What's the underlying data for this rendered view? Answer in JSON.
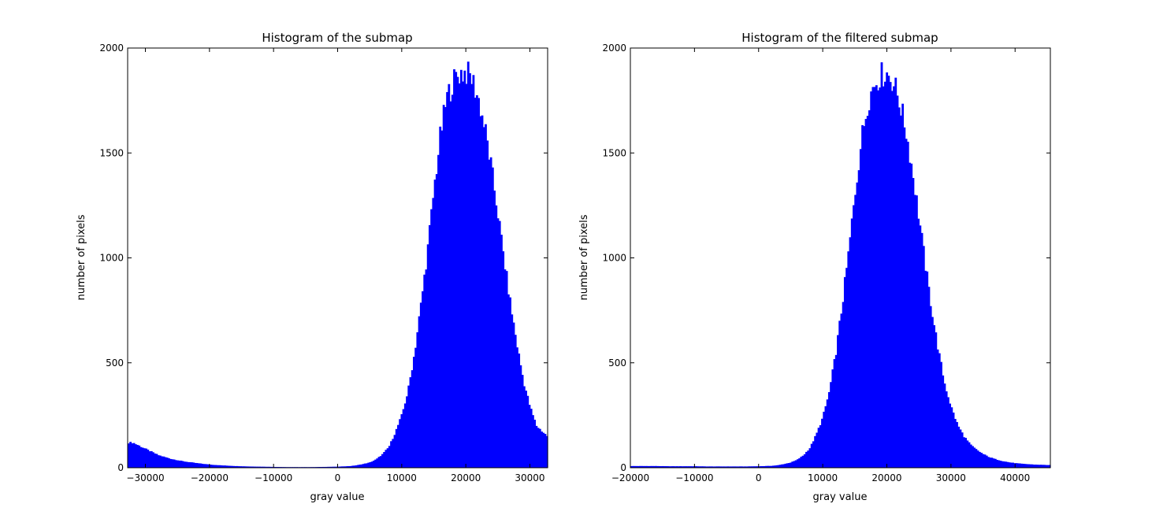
{
  "chart_data": [
    {
      "type": "bar",
      "title": "Histogram of the submap",
      "xlabel": "gray value",
      "ylabel": "number of pixels",
      "xlim": [
        -32768,
        32768
      ],
      "ylim": [
        0,
        2000
      ],
      "xticks": [
        -30000,
        -20000,
        -10000,
        0,
        10000,
        20000,
        30000
      ],
      "xtick_labels": [
        "−30000",
        "−20000",
        "−10000",
        "0",
        "10000",
        "20000",
        "30000"
      ],
      "yticks": [
        0,
        500,
        1000,
        1500,
        2000
      ],
      "ytick_labels": [
        "0",
        "500",
        "1000",
        "1500",
        "2000"
      ],
      "color": "#0000ff",
      "grid": false,
      "x": [
        -32000,
        -30000,
        -28000,
        -26000,
        -24000,
        -22000,
        -20000,
        -18000,
        -16000,
        -14000,
        -12000,
        -10000,
        -8000,
        -6000,
        -4000,
        -2000,
        0,
        2000,
        3000,
        4000,
        5000,
        6000,
        7000,
        8000,
        9000,
        10000,
        11000,
        12000,
        13000,
        14000,
        15000,
        16000,
        17000,
        18000,
        19000,
        20000,
        21000,
        22000,
        23000,
        24000,
        25000,
        26000,
        27000,
        28000,
        29000,
        30000,
        31000,
        32000,
        32700
      ],
      "values": [
        120,
        90,
        60,
        42,
        30,
        22,
        15,
        11,
        8,
        6,
        5,
        4,
        3,
        3,
        3,
        4,
        5,
        8,
        12,
        18,
        25,
        40,
        65,
        100,
        170,
        250,
        370,
        550,
        780,
        1030,
        1320,
        1580,
        1760,
        1840,
        1880,
        1885,
        1850,
        1750,
        1610,
        1420,
        1210,
        980,
        770,
        580,
        410,
        290,
        200,
        170,
        150
      ]
    },
    {
      "type": "bar",
      "title": "Histogram of the filtered submap",
      "xlabel": "gray value",
      "ylabel": "number of pixels",
      "xlim": [
        -20000,
        45500
      ],
      "ylim": [
        0,
        2000
      ],
      "xticks": [
        -20000,
        -10000,
        0,
        10000,
        20000,
        30000,
        40000
      ],
      "xtick_labels": [
        "−20000",
        "−10000",
        "0",
        "10000",
        "20000",
        "30000",
        "40000"
      ],
      "yticks": [
        0,
        500,
        1000,
        1500,
        2000
      ],
      "ytick_labels": [
        "0",
        "500",
        "1000",
        "1500",
        "2000"
      ],
      "color": "#0000ff",
      "grid": false,
      "x": [
        -20000,
        -18000,
        -16000,
        -14000,
        -12000,
        -10000,
        -8000,
        -6000,
        -4000,
        -2000,
        0,
        2000,
        3000,
        4000,
        5000,
        6000,
        7000,
        8000,
        9000,
        10000,
        11000,
        12000,
        13000,
        14000,
        15000,
        16000,
        17000,
        18000,
        19000,
        20000,
        21000,
        22000,
        23000,
        24000,
        25000,
        26000,
        27000,
        28000,
        29000,
        30000,
        31000,
        32000,
        33000,
        34000,
        35000,
        36000,
        37000,
        38000,
        39000,
        40000,
        41000,
        42000,
        43000,
        44000,
        45000
      ],
      "values": [
        8,
        8,
        8,
        7,
        7,
        7,
        6,
        6,
        6,
        6,
        7,
        9,
        12,
        18,
        25,
        38,
        60,
        95,
        160,
        240,
        360,
        540,
        770,
        1020,
        1300,
        1560,
        1740,
        1830,
        1870,
        1880,
        1840,
        1740,
        1600,
        1410,
        1190,
        960,
        750,
        560,
        400,
        290,
        205,
        150,
        110,
        85,
        65,
        50,
        40,
        32,
        26,
        22,
        19,
        17,
        15,
        14,
        13
      ]
    }
  ]
}
